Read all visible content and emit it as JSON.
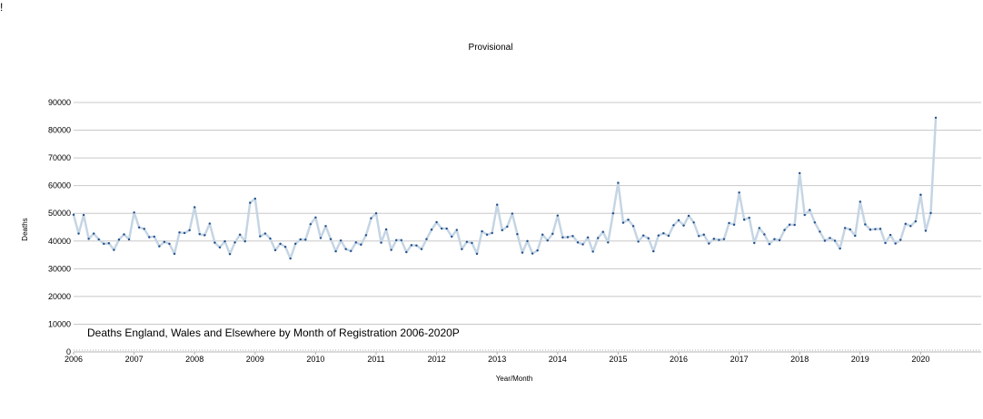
{
  "corner_mark": "!",
  "chart_data": {
    "type": "line",
    "subtitle": "Provisional",
    "title": "Deaths England, Wales and Elsewhere by Month of Registration 2006-2020P",
    "xlabel": "Year/Month",
    "ylabel": "Deaths",
    "ylim": [
      0,
      90000
    ],
    "yticks": [
      "0",
      "10000",
      "20000",
      "30000",
      "40000",
      "50000",
      "60000",
      "70000",
      "80000",
      "90000"
    ],
    "xticks": [
      "2006",
      "2007",
      "2008",
      "2009",
      "2010",
      "2011",
      "2012",
      "2013",
      "2014",
      "2015",
      "2016",
      "2017",
      "2018",
      "2019",
      "2020"
    ],
    "xlim": [
      "2006-01",
      "2020-12"
    ],
    "grid": true,
    "legend": "none",
    "colors": {
      "line": "#c5d5e4",
      "marker": "#1f4e8c",
      "grid": "#c8c8c8",
      "axis": "#b3b3b3"
    },
    "series": [
      {
        "x": [
          "2006-01",
          "2006-02",
          "2006-03",
          "2006-04",
          "2006-05",
          "2006-06",
          "2006-07",
          "2006-08",
          "2006-09",
          "2006-10",
          "2006-11",
          "2006-12",
          "2007-01",
          "2007-02",
          "2007-03",
          "2007-04",
          "2007-05",
          "2007-06",
          "2007-07",
          "2007-08",
          "2007-09",
          "2007-10",
          "2007-11",
          "2007-12",
          "2008-01",
          "2008-02",
          "2008-03",
          "2008-04",
          "2008-05",
          "2008-06",
          "2008-07",
          "2008-08",
          "2008-09",
          "2008-10",
          "2008-11",
          "2008-12",
          "2009-01",
          "2009-02",
          "2009-03",
          "2009-04",
          "2009-05",
          "2009-06",
          "2009-07",
          "2009-08",
          "2009-09",
          "2009-10",
          "2009-11",
          "2009-12",
          "2010-01",
          "2010-02",
          "2010-03",
          "2010-04",
          "2010-05",
          "2010-06",
          "2010-07",
          "2010-08",
          "2010-09",
          "2010-10",
          "2010-11",
          "2010-12",
          "2011-01",
          "2011-02",
          "2011-03",
          "2011-04",
          "2011-05",
          "2011-06",
          "2011-07",
          "2011-08",
          "2011-09",
          "2011-10",
          "2011-11",
          "2011-12",
          "2012-01",
          "2012-02",
          "2012-03",
          "2012-04",
          "2012-05",
          "2012-06",
          "2012-07",
          "2012-08",
          "2012-09",
          "2012-10",
          "2012-11",
          "2012-12",
          "2013-01",
          "2013-02",
          "2013-03",
          "2013-04",
          "2013-05",
          "2013-06",
          "2013-07",
          "2013-08",
          "2013-09",
          "2013-10",
          "2013-11",
          "2013-12",
          "2014-01",
          "2014-02",
          "2014-03",
          "2014-04",
          "2014-05",
          "2014-06",
          "2014-07",
          "2014-08",
          "2014-09",
          "2014-10",
          "2014-11",
          "2014-12",
          "2015-01",
          "2015-02",
          "2015-03",
          "2015-04",
          "2015-05",
          "2015-06",
          "2015-07",
          "2015-08",
          "2015-09",
          "2015-10",
          "2015-11",
          "2015-12",
          "2016-01",
          "2016-02",
          "2016-03",
          "2016-04",
          "2016-05",
          "2016-06",
          "2016-07",
          "2016-08",
          "2016-09",
          "2016-10",
          "2016-11",
          "2016-12",
          "2017-01",
          "2017-02",
          "2017-03",
          "2017-04",
          "2017-05",
          "2017-06",
          "2017-07",
          "2017-08",
          "2017-09",
          "2017-10",
          "2017-11",
          "2017-12",
          "2018-01",
          "2018-02",
          "2018-03",
          "2018-04",
          "2018-05",
          "2018-06",
          "2018-07",
          "2018-08",
          "2018-09",
          "2018-10",
          "2018-11",
          "2018-12",
          "2019-01",
          "2019-02",
          "2019-03",
          "2019-04",
          "2019-05",
          "2019-06",
          "2019-07",
          "2019-08",
          "2019-09",
          "2019-10",
          "2019-11",
          "2019-12",
          "2020-01",
          "2020-02",
          "2020-03",
          "2020-04"
        ],
        "values": [
          49500,
          42700,
          49400,
          40800,
          42700,
          40600,
          39000,
          39200,
          36800,
          40500,
          42400,
          40600,
          50300,
          44900,
          44400,
          41400,
          41600,
          38100,
          39700,
          39000,
          35400,
          43100,
          42900,
          43900,
          52200,
          42500,
          42100,
          46300,
          39400,
          37700,
          39900,
          35300,
          39500,
          42300,
          39900,
          53800,
          55300,
          41700,
          42700,
          40900,
          36700,
          39000,
          37900,
          33700,
          39000,
          40600,
          40500,
          46100,
          48500,
          41100,
          45400,
          40700,
          36300,
          40200,
          37100,
          36400,
          39500,
          38700,
          42100,
          48200,
          50000,
          39400,
          44200,
          36800,
          40300,
          40300,
          36000,
          38500,
          38400,
          37100,
          40700,
          44100,
          46800,
          44500,
          44500,
          41600,
          44000,
          37100,
          39700,
          39300,
          35400,
          43500,
          42300,
          42900,
          53100,
          43900,
          45200,
          49900,
          42500,
          35800,
          40000,
          35500,
          36600,
          42300,
          40200,
          42600,
          49200,
          41300,
          41400,
          41800,
          39500,
          38800,
          41300,
          36200,
          41100,
          43300,
          39500,
          50000,
          61000,
          46600,
          47700,
          45400,
          39800,
          42000,
          41000,
          36300,
          42000,
          42800,
          41900,
          45700,
          47500,
          45600,
          49100,
          46700,
          41800,
          42300,
          39100,
          40800,
          40400,
          40700,
          46500,
          45900,
          57500,
          47700,
          48400,
          39300,
          44700,
          42400,
          38900,
          40700,
          40300,
          44000,
          45900,
          45800,
          64500,
          49400,
          51200,
          46700,
          43400,
          40100,
          41100,
          40100,
          37300,
          44700,
          44200,
          41900,
          54200,
          46000,
          44100,
          44300,
          44400,
          39300,
          42200,
          39100,
          40400,
          46200,
          45400,
          47100,
          56700,
          43700,
          50100,
          84500
        ]
      }
    ]
  }
}
